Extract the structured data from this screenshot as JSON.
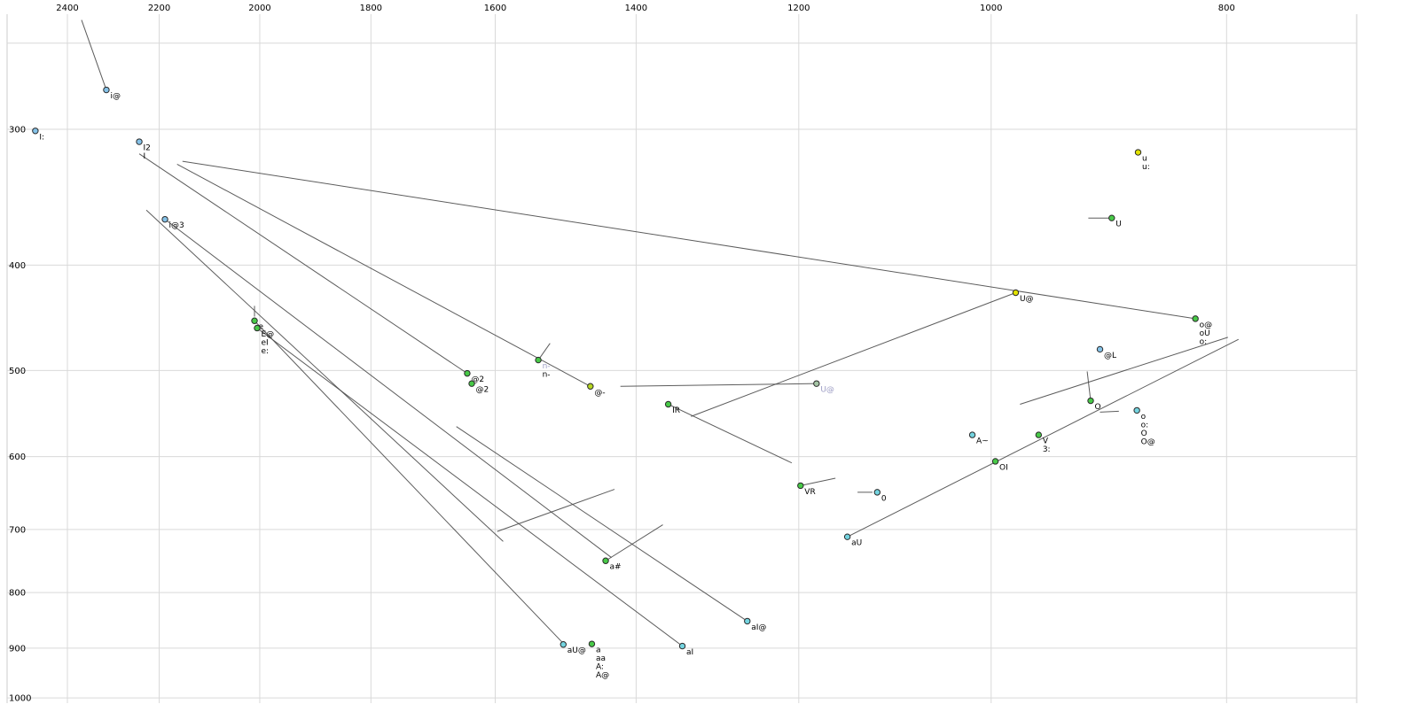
{
  "chart_data": {
    "type": "scatter",
    "title": "",
    "description": "Vowel formant plot: F2 (Hz, reversed log scale) on x-axis, F1 (Hz, log scale increasing downward) on y-axis, points labelled with X-SAMPA vowel symbols, with diphthong trajectory lines",
    "x_axis": {
      "unit": "Hz",
      "scale": "log",
      "reversed": true,
      "ticks": [
        2400,
        2200,
        2000,
        1800,
        1600,
        1400,
        1200,
        1000,
        800
      ]
    },
    "y_axis": {
      "unit": "Hz",
      "scale": "log",
      "ticks": [
        300,
        400,
        500,
        600,
        700,
        800,
        900,
        1000
      ],
      "top_gridline": 250
    },
    "points": [
      {
        "f2": 2313,
        "f1": 276,
        "color": "blue",
        "labels": [
          "i@"
        ]
      },
      {
        "f2": 2474,
        "f1": 301,
        "color": "blue",
        "labels": [
          "I:"
        ]
      },
      {
        "f2": 2242,
        "f1": 308,
        "color": "blue",
        "labels": [
          "I2",
          "I"
        ]
      },
      {
        "f2": 2188,
        "f1": 363,
        "color": "blue",
        "labels": [
          "i@3"
        ]
      },
      {
        "f2": 2010,
        "f1": 450,
        "color": "green",
        "labels": [
          "e"
        ]
      },
      {
        "f2": 2005,
        "f1": 457,
        "color": "green",
        "labels": [
          "E@",
          "eI",
          "e:"
        ]
      },
      {
        "f2": 1643,
        "f1": 503,
        "color": "green",
        "labels": [
          "@2"
        ]
      },
      {
        "f2": 1636,
        "f1": 514,
        "color": "green",
        "labels": [
          "@2"
        ]
      },
      {
        "f2": 1536,
        "f1": 489,
        "color": "green",
        "labels": [
          {
            "text": "n-",
            "muted": true
          },
          "n-"
        ]
      },
      {
        "f2": 1462,
        "f1": 517,
        "color": "yellowgreen",
        "labels": [
          "@-"
        ]
      },
      {
        "f2": 1358,
        "f1": 537,
        "color": "green",
        "labels": [
          "IR"
        ]
      },
      {
        "f2": 1180,
        "f1": 514,
        "color": "graygreen",
        "labels": [
          {
            "text": "U@",
            "muted": true
          }
        ]
      },
      {
        "f2": 977,
        "f1": 424,
        "color": "yellow",
        "labels": [
          "U@"
        ]
      },
      {
        "f2": 870,
        "f1": 315,
        "color": "yellow",
        "labels": [
          "u",
          "u:"
        ]
      },
      {
        "f2": 892,
        "f1": 362,
        "color": "green",
        "labels": [
          "U"
        ]
      },
      {
        "f2": 824,
        "f1": 448,
        "color": "green",
        "labels": [
          "o@",
          "oU",
          "o:"
        ]
      },
      {
        "f2": 902,
        "f1": 478,
        "color": "blue",
        "labels": [
          "@L"
        ]
      },
      {
        "f2": 910,
        "f1": 533,
        "color": "green",
        "labels": [
          "O"
        ]
      },
      {
        "f2": 871,
        "f1": 544,
        "color": "cyan",
        "labels": [
          "o",
          "o:",
          "O",
          "O@"
        ]
      },
      {
        "f2": 1018,
        "f1": 573,
        "color": "cyan",
        "labels": [
          "A~"
        ]
      },
      {
        "f2": 956,
        "f1": 573,
        "color": "green",
        "labels": [
          "V",
          "3:"
        ]
      },
      {
        "f2": 996,
        "f1": 606,
        "color": "green",
        "labels": [
          "OI"
        ]
      },
      {
        "f2": 1198,
        "f1": 638,
        "color": "green",
        "labels": [
          "VR"
        ]
      },
      {
        "f2": 1114,
        "f1": 647,
        "color": "cyan",
        "labels": [
          "0"
        ]
      },
      {
        "f2": 1146,
        "f1": 711,
        "color": "cyan",
        "labels": [
          "aU"
        ]
      },
      {
        "f2": 1441,
        "f1": 748,
        "color": "green",
        "labels": [
          "a#"
        ]
      },
      {
        "f2": 1260,
        "f1": 850,
        "color": "cyan",
        "labels": [
          "aI@"
        ]
      },
      {
        "f2": 1500,
        "f1": 893,
        "color": "cyan",
        "labels": [
          "aU@"
        ]
      },
      {
        "f2": 1460,
        "f1": 892,
        "color": "green",
        "labels": [
          "a",
          "aa",
          "A:",
          "A@"
        ]
      },
      {
        "f2": 1340,
        "f1": 896,
        "color": "cyan",
        "labels": [
          "aI"
        ]
      }
    ],
    "segments": [
      [
        2368,
        238,
        2313,
        276
      ],
      [
        2163,
        323,
        1462,
        517
      ],
      [
        2152,
        321,
        824,
        448
      ],
      [
        2227,
        356,
        1588,
        718
      ],
      [
        2188,
        363,
        1433,
        743
      ],
      [
        2010,
        450,
        1500,
        891
      ],
      [
        2242,
        316,
        1643,
        503
      ],
      [
        1536,
        489,
        1519,
        472
      ],
      [
        1421,
        517,
        1180,
        514
      ],
      [
        977,
        424,
        1329,
        551
      ],
      [
        1358,
        537,
        1208,
        608
      ],
      [
        1198,
        638,
        1159,
        628
      ],
      [
        1135,
        647,
        1119,
        647
      ],
      [
        1146,
        711,
        791,
        468
      ],
      [
        973,
        537,
        799,
        466
      ],
      [
        912,
        362,
        892,
        362
      ],
      [
        913,
        501,
        910,
        533
      ],
      [
        902,
        546,
        886,
        545
      ],
      [
        1441,
        748,
        1365,
        693
      ],
      [
        1597,
        703,
        1429,
        643
      ],
      [
        2005,
        457,
        1340,
        896
      ],
      [
        1660,
        563,
        1260,
        850
      ],
      [
        2010,
        436,
        2010,
        446
      ]
    ]
  },
  "colors": {
    "background": "#ffffff",
    "grid": "#d9d9d9",
    "frame": "#cccccc",
    "segment": "#4a4a4a",
    "tick_label": "#000000",
    "label": "#000000",
    "muted_label": "#9c9cc4",
    "point_stroke": "#2a2a2a",
    "palette": {
      "blue": "#85c2e8",
      "cyan": "#74d4e0",
      "green": "#47c947",
      "yellow": "#e2e200",
      "yellowgreen": "#b6d622",
      "graygreen": "#a4c4a4"
    }
  }
}
